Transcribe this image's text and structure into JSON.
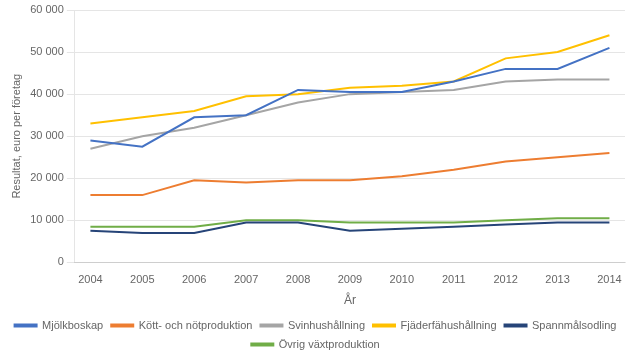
{
  "chart_data": {
    "type": "line",
    "xlabel": "År",
    "ylabel": "Resultat, euro per företag",
    "x": [
      2004,
      2005,
      2006,
      2007,
      2008,
      2009,
      2010,
      2011,
      2012,
      2013,
      2014
    ],
    "series": [
      {
        "name": "Mjölkboskap",
        "color": "#4472C4",
        "values": [
          29000,
          27500,
          34500,
          35000,
          41000,
          40500,
          40500,
          43000,
          46000,
          46000,
          51000
        ]
      },
      {
        "name": "Kött- och nötproduktion",
        "color": "#ED7D31",
        "values": [
          16000,
          16000,
          19500,
          19000,
          19500,
          19500,
          20500,
          22000,
          24000,
          25000,
          26000
        ]
      },
      {
        "name": "Svinhushållning",
        "color": "#A5A5A5",
        "values": [
          27000,
          30000,
          32000,
          35000,
          38000,
          40000,
          40500,
          41000,
          43000,
          43500,
          43500
        ]
      },
      {
        "name": "Fjäderfähushållning",
        "color": "#FFC000",
        "values": [
          33000,
          34500,
          36000,
          39500,
          40000,
          41500,
          42000,
          43000,
          48500,
          50000,
          54000
        ]
      },
      {
        "name": "Spannmålsodling",
        "color": "#264478",
        "values": [
          7500,
          7000,
          7000,
          9500,
          9500,
          7500,
          8000,
          8500,
          9000,
          9500,
          9500
        ]
      },
      {
        "name": "Övrig växtproduktion",
        "color": "#70AD47",
        "values": [
          8500,
          8500,
          8500,
          10000,
          10000,
          9500,
          9500,
          9500,
          10000,
          10500,
          10500
        ]
      }
    ],
    "xlim": [
      2003.7,
      2014.3
    ],
    "xticks": [
      2004,
      2005,
      2006,
      2007,
      2008,
      2009,
      2010,
      2011,
      2012,
      2013,
      2014
    ],
    "ylim": [
      0,
      60000
    ],
    "yticks": [
      0,
      {
        "value": 10000,
        "label": "10 000"
      },
      {
        "value": 20000,
        "label": "20 000"
      },
      {
        "value": 30000,
        "label": "30 000"
      },
      {
        "value": 40000,
        "label": "40 000"
      },
      {
        "value": 50000,
        "label": "50 000"
      },
      {
        "value": 60000,
        "label": "60 000"
      }
    ],
    "grid": "y",
    "legend": "bottom"
  }
}
